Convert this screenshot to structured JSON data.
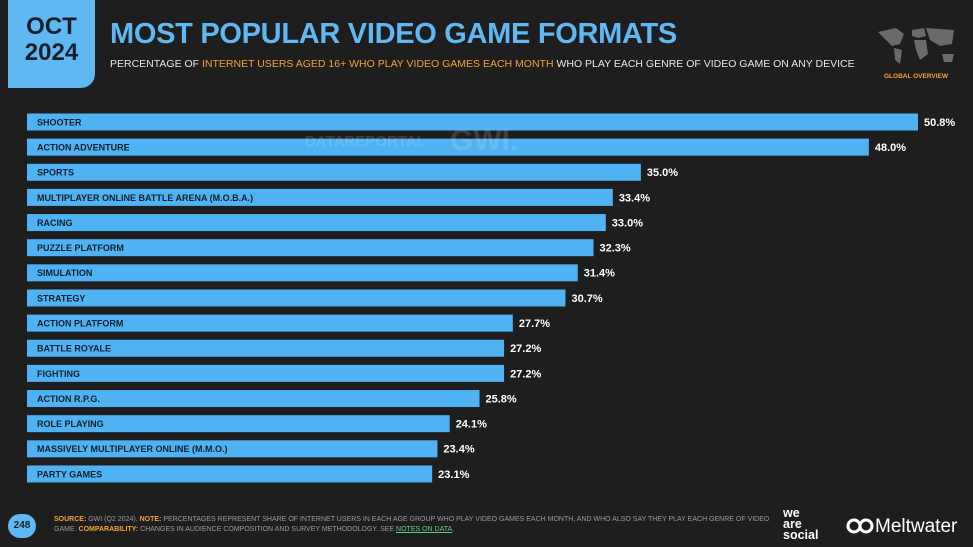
{
  "badge": {
    "month": "OCT",
    "year": "2024"
  },
  "corner_label": "GLOBAL OVERVIEW",
  "watermarks": [
    "DATAREPORTAL",
    "GWI."
  ],
  "page_number": "248",
  "footer": {
    "source_label": "SOURCE:",
    "source": "GWI (Q2 2024).",
    "note_label": "NOTE:",
    "note": "PERCENTAGES REPRESENT SHARE OF INTERNET USERS IN EACH AGE GROUP WHO PLAY VIDEO GAMES EACH MONTH, AND WHO ALSO SAY THEY PLAY EACH GENRE OF VIDEO GAME.",
    "comparability_label": "COMPARABILITY:",
    "comparability": "CHANGES IN AUDIENCE COMPOSITION AND SURVEY METHODOLOGY. SEE",
    "link": "NOTES ON DATA",
    "end": "."
  },
  "logos": {
    "we_are_social": [
      "we",
      "are",
      "social"
    ],
    "meltwater": "Meltwater"
  },
  "chart_data": {
    "type": "hbar",
    "title": "MOST POPULAR VIDEO GAME FORMATS",
    "subtitle": [
      "PERCENTAGE OF",
      "INTERNET USERS AGED 16+ WHO PLAY VIDEO GAMES EACH MONTH",
      "WHO PLAY EACH GENRE OF VIDEO GAME ON ANY DEVICE"
    ],
    "categories": [
      "SHOOTER",
      "ACTION ADVENTURE",
      "SPORTS",
      "MULTIPLAYER ONLINE BATTLE ARENA (M.O.B.A.)",
      "RACING",
      "PUZZLE PLATFORM",
      "SIMULATION",
      "STRATEGY",
      "ACTION PLATFORM",
      "BATTLE ROYALE",
      "FIGHTING",
      "ACTION R.P.G.",
      "ROLE PLAYING",
      "MASSIVELY MULTIPLAYER ONLINE (M.M.O.)",
      "PARTY GAMES"
    ],
    "values": [
      50.8,
      48.0,
      35.0,
      33.4,
      33.0,
      32.3,
      31.4,
      30.7,
      27.7,
      27.2,
      27.2,
      25.8,
      24.1,
      23.4,
      23.1
    ],
    "value_labels": [
      "50.8%",
      "48.0%",
      "35.0%",
      "33.4%",
      "33.0%",
      "32.3%",
      "31.4%",
      "30.7%",
      "27.7%",
      "27.2%",
      "27.2%",
      "25.8%",
      "24.1%",
      "23.4%",
      "23.1%"
    ],
    "color": "#4fb2f3"
  }
}
